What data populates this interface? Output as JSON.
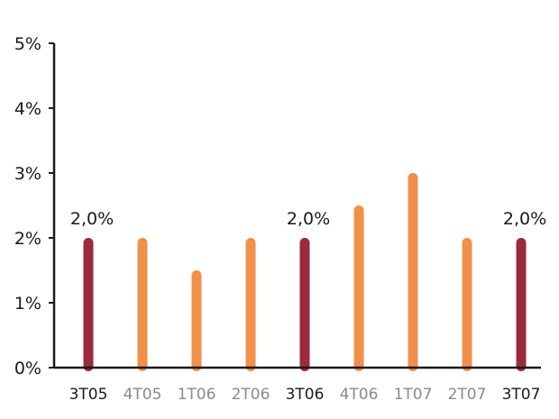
{
  "chart_data": {
    "type": "bar",
    "title": "",
    "xlabel": "",
    "ylabel": "",
    "ylim": [
      0,
      5
    ],
    "yticks": [
      "0%",
      "1%",
      "2%",
      "3%",
      "4%",
      "5%"
    ],
    "categories": [
      "3T05",
      "4T05",
      "1T06",
      "2T06",
      "3T06",
      "4T06",
      "1T07",
      "2T07",
      "3T07"
    ],
    "values": [
      2.0,
      2.0,
      1.5,
      2.0,
      2.0,
      2.5,
      3.0,
      2.0,
      2.0
    ],
    "highlighted": [
      true,
      false,
      false,
      false,
      true,
      false,
      false,
      false,
      true
    ],
    "data_labels": [
      "2,0%",
      "",
      "",
      "",
      "2,0%",
      "",
      "",
      "",
      "2,0%"
    ],
    "grid": false,
    "colors": {
      "highlight_bar": "#9b2a3c",
      "normal_bar": "#f0914a",
      "highlight_label": "#1a1a1a",
      "normal_label": "#8a8a8a",
      "axis": "#1a1a1a"
    }
  }
}
